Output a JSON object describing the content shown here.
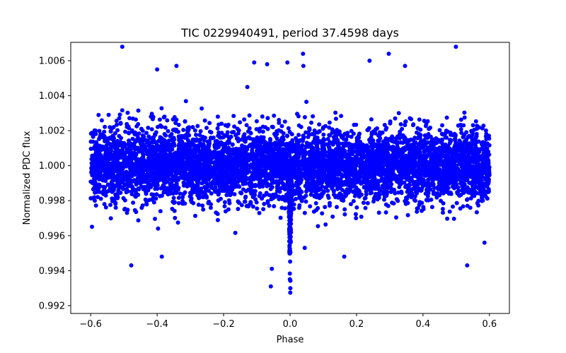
{
  "chart_data": {
    "type": "scatter",
    "title": "TIC 0229940491, period 37.4598 days",
    "xlabel": "Phase",
    "ylabel": "Normalized PDC flux",
    "xlim": [
      -0.66,
      0.66
    ],
    "ylim": [
      0.99155,
      1.00705
    ],
    "xticks": [
      -0.6,
      -0.4,
      -0.2,
      0.0,
      0.2,
      0.4,
      0.6
    ],
    "xtick_labels": [
      "−0.6",
      "−0.4",
      "−0.2",
      "0.0",
      "0.2",
      "0.4",
      "0.6"
    ],
    "yticks": [
      0.992,
      0.994,
      0.996,
      0.998,
      1.0,
      1.002,
      1.004,
      1.006
    ],
    "ytick_labels": [
      "0.992",
      "0.994",
      "0.996",
      "0.998",
      "1.000",
      "1.002",
      "1.004",
      "1.006"
    ],
    "series": [
      {
        "name": "PDC flux",
        "color": "#0000ff",
        "phase_range": [
          -0.6,
          0.6
        ],
        "baseline": 1.0,
        "scatter_sigma": 0.00105,
        "transit": {
          "center": 0.0,
          "half_width": 0.005,
          "depth": 0.0075
        },
        "outliers": [
          {
            "x": -0.505,
            "y": 1.0068
          },
          {
            "x": 0.499,
            "y": 1.0068
          },
          {
            "x": 0.039,
            "y": 1.0064
          },
          {
            "x": 0.297,
            "y": 1.0064
          },
          {
            "x": -0.108,
            "y": 1.0059
          },
          {
            "x": -0.069,
            "y": 1.0058
          },
          {
            "x": 0.239,
            "y": 1.006
          },
          {
            "x": -0.342,
            "y": 1.0057
          },
          {
            "x": -0.4,
            "y": 1.0055
          },
          {
            "x": -0.008,
            "y": 1.0059
          },
          {
            "x": 0.04,
            "y": 1.0057
          },
          {
            "x": 0.346,
            "y": 1.0057
          },
          {
            "x": -0.478,
            "y": 0.9943
          },
          {
            "x": -0.386,
            "y": 0.9948
          },
          {
            "x": 0.533,
            "y": 0.9943
          },
          {
            "x": 0.163,
            "y": 0.9948
          },
          {
            "x": -0.058,
            "y": 0.9931
          },
          {
            "x": -0.055,
            "y": 0.9941
          },
          {
            "x": 0.585,
            "y": 0.9956
          },
          {
            "x": 0.044,
            "y": 0.9953
          }
        ]
      }
    ]
  }
}
